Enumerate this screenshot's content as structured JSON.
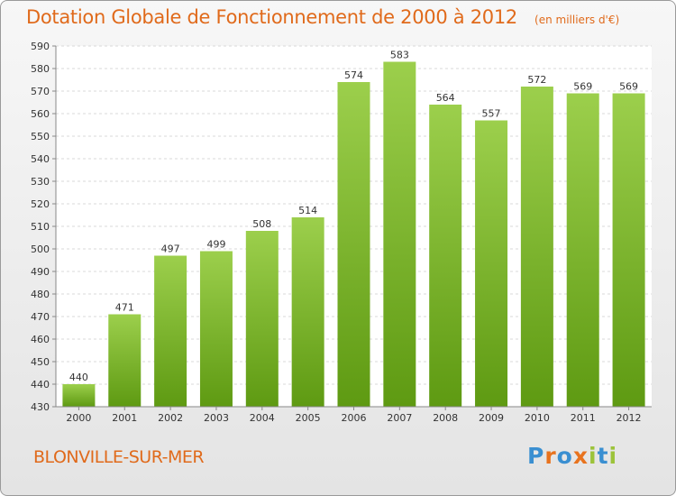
{
  "title": "Dotation Globale de Fonctionnement de 2000 à 2012",
  "subtitle": "(en milliers d'€)",
  "commune": "BLONVILLE-SUR-MER",
  "logo": {
    "letters": [
      "P",
      "r",
      "o",
      "x",
      "i",
      "t",
      "i"
    ],
    "colors": [
      "#3a8fd1",
      "#e8731e",
      "#3a8fd1",
      "#e8731e",
      "#9cc33a",
      "#3a8fd1",
      "#9cc33a"
    ]
  },
  "chart_data": {
    "type": "bar",
    "title": "Dotation Globale de Fonctionnement de 2000 à 2012",
    "subtitle": "(en milliers d'€)",
    "categories": [
      "2000",
      "2001",
      "2002",
      "2003",
      "2004",
      "2005",
      "2006",
      "2007",
      "2008",
      "2009",
      "2010",
      "2011",
      "2012"
    ],
    "values": [
      440,
      471,
      497,
      499,
      508,
      514,
      574,
      583,
      564,
      557,
      572,
      569,
      569
    ],
    "ylim": [
      430,
      590
    ],
    "ytick_step": 10,
    "grid": true,
    "bar_color_top": "#9ccf4c",
    "bar_color_bottom": "#5e9a12"
  }
}
